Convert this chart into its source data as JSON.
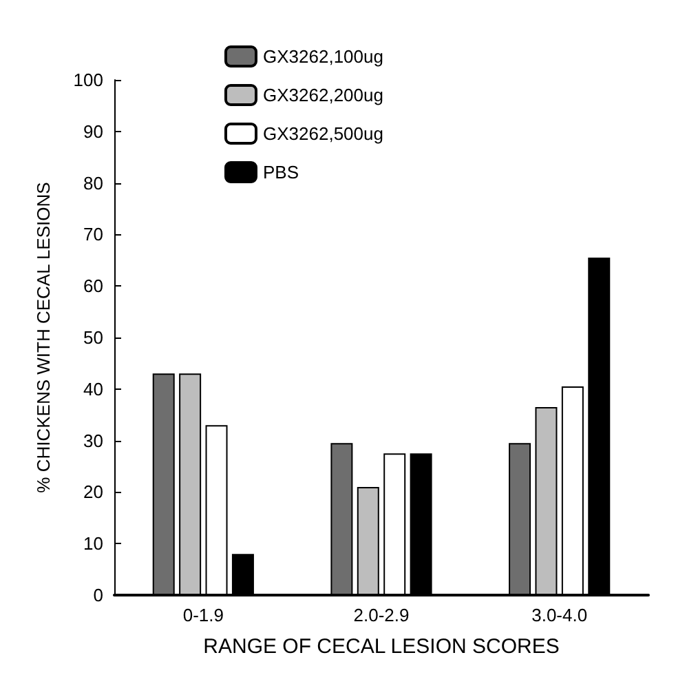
{
  "chart_data": {
    "type": "bar",
    "xlabel": "RANGE OF CECAL LESION SCORES",
    "ylabel": "% CHICKENS WITH CECAL LESIONS",
    "categories": [
      "0-1.9",
      "2.0-2.9",
      "3.0-4.0"
    ],
    "series": [
      {
        "name": "GX3262,100ug",
        "color": "#6e6e6e",
        "values": [
          43,
          29.5,
          29.5
        ]
      },
      {
        "name": "GX3262,200ug",
        "color": "#bdbdbd",
        "values": [
          43,
          21,
          36.5
        ]
      },
      {
        "name": "GX3262,500ug",
        "color": "#ffffff",
        "values": [
          33,
          27.5,
          40.5
        ]
      },
      {
        "name": "PBS",
        "color": "#000000",
        "values": [
          8,
          27.5,
          65.5
        ]
      }
    ],
    "ylim": [
      0,
      100
    ],
    "yticks": [
      0,
      10,
      20,
      30,
      40,
      50,
      60,
      70,
      80,
      90,
      100
    ],
    "grid": false,
    "legend": "top left"
  }
}
